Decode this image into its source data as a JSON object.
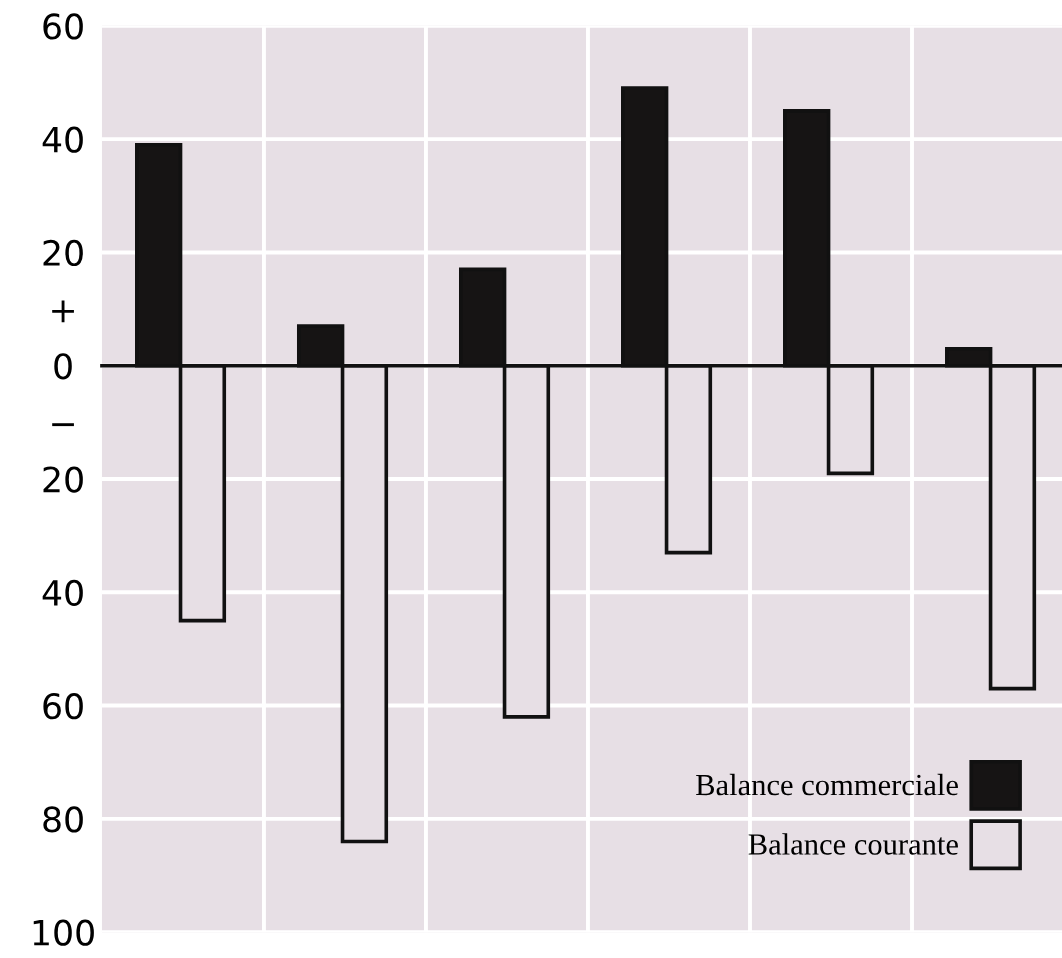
{
  "chart_data": {
    "type": "bar",
    "categories": [
      null,
      null,
      null,
      null,
      null,
      null
    ],
    "series": [
      {
        "name": "Balance commerciale",
        "color": "#161414",
        "values": [
          39,
          7,
          17,
          49,
          45,
          3
        ]
      },
      {
        "name": "Balance courante",
        "color": "#e7dfe5",
        "values": [
          -45,
          -84,
          -62,
          -33,
          -19,
          -57
        ]
      }
    ],
    "ylim": [
      -100,
      60
    ],
    "yticks": [
      60,
      40,
      20,
      {
        "value": 10,
        "label": "+"
      },
      0,
      {
        "value": -10,
        "label": "−"
      },
      {
        "value": -20,
        "label": "20"
      },
      {
        "value": -40,
        "label": "40"
      },
      {
        "value": -60,
        "label": "60"
      },
      {
        "value": -80,
        "label": "80"
      },
      {
        "value": -100,
        "label": "100"
      }
    ],
    "grid": true,
    "legend": "bottom right",
    "tick_labels": "y"
  }
}
